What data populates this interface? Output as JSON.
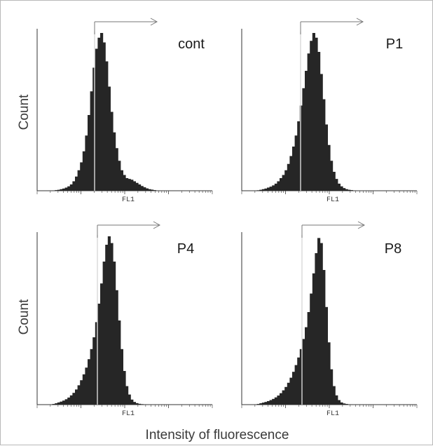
{
  "figure": {
    "y_axis_label": "Count",
    "x_axis_label": "Intensity of fluorescence"
  },
  "chart_data": [
    {
      "type": "area",
      "title": "cont",
      "xlabel": "FL1",
      "ylabel": "Count",
      "x_scale": "log",
      "gate": "marker",
      "series": [
        {
          "values": [
            0,
            0.002,
            0.004,
            0.006,
            0.01,
            0.014,
            0.02,
            0.028,
            0.04,
            0.06,
            0.09,
            0.13,
            0.18,
            0.25,
            0.35,
            0.48,
            0.63,
            0.78,
            0.9,
            0.97,
            1.0,
            0.94,
            0.82,
            0.66,
            0.5,
            0.37,
            0.27,
            0.19,
            0.13,
            0.1,
            0.08,
            0.075,
            0.07,
            0.06,
            0.05,
            0.04,
            0.03,
            0.022,
            0.015,
            0.01,
            0.007,
            0.004,
            0.002,
            0.001,
            0,
            0,
            0,
            0,
            0,
            0
          ]
        }
      ]
    },
    {
      "type": "area",
      "title": "P1",
      "xlabel": "FL1",
      "ylabel": "Count",
      "x_scale": "log",
      "gate": "marker",
      "series": [
        {
          "values": [
            0,
            0.003,
            0.006,
            0.01,
            0.014,
            0.02,
            0.026,
            0.034,
            0.045,
            0.06,
            0.08,
            0.1,
            0.13,
            0.17,
            0.22,
            0.28,
            0.35,
            0.44,
            0.54,
            0.65,
            0.76,
            0.87,
            0.95,
            1.0,
            0.97,
            0.88,
            0.74,
            0.58,
            0.42,
            0.29,
            0.19,
            0.12,
            0.075,
            0.045,
            0.028,
            0.017,
            0.01,
            0.006,
            0.004,
            0.002,
            0.001,
            0,
            0,
            0,
            0,
            0,
            0,
            0,
            0,
            0
          ]
        }
      ]
    },
    {
      "type": "area",
      "title": "P4",
      "xlabel": "FL1",
      "ylabel": "Count",
      "x_scale": "log",
      "gate": "marker",
      "series": [
        {
          "values": [
            0,
            0.004,
            0.008,
            0.013,
            0.018,
            0.024,
            0.032,
            0.042,
            0.055,
            0.07,
            0.09,
            0.115,
            0.145,
            0.18,
            0.22,
            0.27,
            0.33,
            0.4,
            0.49,
            0.6,
            0.72,
            0.85,
            0.95,
            1.0,
            0.96,
            0.85,
            0.68,
            0.5,
            0.33,
            0.2,
            0.11,
            0.06,
            0.03,
            0.016,
            0.009,
            0.005,
            0.003,
            0.002,
            0.001,
            0,
            0,
            0,
            0,
            0,
            0,
            0,
            0,
            0,
            0,
            0
          ]
        }
      ]
    },
    {
      "type": "area",
      "title": "P8",
      "xlabel": "FL1",
      "ylabel": "Count",
      "x_scale": "log",
      "gate": "marker",
      "series": [
        {
          "values": [
            0,
            0.004,
            0.008,
            0.012,
            0.016,
            0.021,
            0.027,
            0.034,
            0.043,
            0.054,
            0.068,
            0.085,
            0.105,
            0.13,
            0.16,
            0.195,
            0.235,
            0.28,
            0.33,
            0.39,
            0.46,
            0.55,
            0.66,
            0.78,
            0.9,
            0.99,
            0.96,
            0.8,
            0.58,
            0.37,
            0.21,
            0.11,
            0.055,
            0.027,
            0.013,
            0.007,
            0.004,
            0.002,
            0.001,
            0,
            0,
            0,
            0,
            0,
            0,
            0,
            0,
            0,
            0,
            0
          ]
        }
      ]
    }
  ]
}
